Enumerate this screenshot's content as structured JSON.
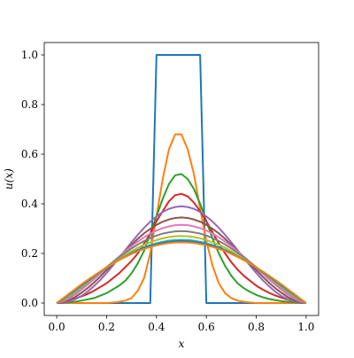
{
  "chart_data": {
    "type": "line",
    "xlabel": "x",
    "ylabel": "u(x)",
    "xlim": [
      -0.05,
      1.05
    ],
    "ylim": [
      -0.05,
      1.05
    ],
    "xticks": [
      {
        "value": 0,
        "label": "0.0"
      },
      {
        "value": 0.2,
        "label": "0.2"
      },
      {
        "value": 0.4,
        "label": "0.4"
      },
      {
        "value": 0.6,
        "label": "0.6"
      },
      {
        "value": 0.8,
        "label": "0.8"
      },
      {
        "value": 1,
        "label": "1.0"
      }
    ],
    "yticks": [
      {
        "value": 0,
        "label": "0.0"
      },
      {
        "value": 0.2,
        "label": "0.2"
      },
      {
        "value": 0.4,
        "label": "0.4"
      },
      {
        "value": 0.6,
        "label": "0.6"
      },
      {
        "value": 0.8,
        "label": "0.8"
      },
      {
        "value": 1,
        "label": "1.0"
      }
    ],
    "x": [
      0,
      0.025,
      0.05,
      0.075,
      0.1,
      0.125,
      0.15,
      0.175,
      0.2,
      0.225,
      0.25,
      0.275,
      0.3,
      0.325,
      0.35,
      0.375,
      0.4,
      0.425,
      0.45,
      0.475,
      0.5,
      0.525,
      0.55,
      0.575,
      0.6,
      0.625,
      0.65,
      0.675,
      0.7,
      0.725,
      0.75,
      0.775,
      0.8,
      0.825,
      0.85,
      0.875,
      0.9,
      0.925,
      0.95,
      0.975,
      1
    ],
    "series": [
      {
        "color": "#1f77b4",
        "values": [
          0,
          0,
          0,
          0,
          0,
          0,
          0,
          0,
          0,
          0,
          0,
          0,
          0,
          0,
          0,
          0,
          1,
          1,
          1,
          1,
          1,
          1,
          1,
          1,
          0,
          0,
          0,
          0,
          0,
          0,
          0,
          0,
          0,
          0,
          0,
          0,
          0,
          0,
          0,
          0,
          0
        ]
      },
      {
        "color": "#ff7f0e",
        "values": [
          0,
          0,
          0,
          0,
          0,
          0,
          0,
          0,
          0,
          0.002,
          0.005,
          0.01,
          0.02,
          0.05,
          0.1,
          0.2,
          0.35,
          0.5,
          0.62,
          0.68,
          0.68,
          0.62,
          0.52,
          0.38,
          0.25,
          0.15,
          0.08,
          0.04,
          0.02,
          0.01,
          0.005,
          0.002,
          0,
          0,
          0,
          0,
          0,
          0,
          0,
          0,
          0
        ]
      },
      {
        "color": "#2ca02c",
        "values": [
          0,
          0.001,
          0.003,
          0.006,
          0.01,
          0.015,
          0.02,
          0.03,
          0.04,
          0.055,
          0.07,
          0.09,
          0.12,
          0.16,
          0.21,
          0.28,
          0.35,
          0.42,
          0.48,
          0.515,
          0.52,
          0.5,
          0.46,
          0.4,
          0.33,
          0.26,
          0.2,
          0.15,
          0.11,
          0.08,
          0.06,
          0.045,
          0.033,
          0.024,
          0.017,
          0.012,
          0.008,
          0.005,
          0.003,
          0.001,
          0
        ]
      },
      {
        "color": "#d62728",
        "values": [
          0,
          0.004,
          0.01,
          0.018,
          0.027,
          0.037,
          0.05,
          0.065,
          0.08,
          0.1,
          0.12,
          0.145,
          0.17,
          0.2,
          0.24,
          0.28,
          0.33,
          0.37,
          0.41,
          0.435,
          0.44,
          0.43,
          0.405,
          0.37,
          0.33,
          0.285,
          0.24,
          0.2,
          0.165,
          0.135,
          0.11,
          0.09,
          0.07,
          0.055,
          0.042,
          0.031,
          0.022,
          0.014,
          0.008,
          0.003,
          0
        ]
      },
      {
        "color": "#9467bd",
        "values": [
          0,
          0.001,
          0.007,
          0.016,
          0.029,
          0.047,
          0.069,
          0.093,
          0.121,
          0.151,
          0.182,
          0.213,
          0.245,
          0.275,
          0.303,
          0.328,
          0.349,
          0.367,
          0.38,
          0.387,
          0.39,
          0.387,
          0.38,
          0.367,
          0.349,
          0.328,
          0.303,
          0.275,
          0.245,
          0.213,
          0.182,
          0.151,
          0.121,
          0.093,
          0.069,
          0.047,
          0.029,
          0.016,
          0.007,
          0.001,
          0
        ]
      },
      {
        "color": "#8c564b",
        "values": [
          0,
          0.003,
          0.012,
          0.025,
          0.042,
          0.061,
          0.083,
          0.107,
          0.133,
          0.158,
          0.185,
          0.211,
          0.235,
          0.259,
          0.281,
          0.299,
          0.315,
          0.328,
          0.337,
          0.343,
          0.345,
          0.343,
          0.337,
          0.328,
          0.315,
          0.299,
          0.281,
          0.259,
          0.235,
          0.211,
          0.185,
          0.158,
          0.133,
          0.107,
          0.083,
          0.061,
          0.042,
          0.025,
          0.012,
          0.003,
          0
        ]
      },
      {
        "color": "#e377c2",
        "values": [
          0,
          0.007,
          0.019,
          0.035,
          0.054,
          0.075,
          0.096,
          0.119,
          0.142,
          0.165,
          0.187,
          0.209,
          0.229,
          0.248,
          0.265,
          0.28,
          0.292,
          0.302,
          0.309,
          0.314,
          0.315,
          0.314,
          0.309,
          0.302,
          0.292,
          0.28,
          0.265,
          0.248,
          0.229,
          0.209,
          0.187,
          0.165,
          0.142,
          0.119,
          0.096,
          0.075,
          0.054,
          0.035,
          0.019,
          0.007,
          0
        ]
      },
      {
        "color": "#7f7f7f",
        "values": [
          0,
          0.011,
          0.026,
          0.044,
          0.063,
          0.083,
          0.104,
          0.125,
          0.145,
          0.165,
          0.185,
          0.203,
          0.22,
          0.236,
          0.25,
          0.262,
          0.272,
          0.28,
          0.285,
          0.289,
          0.29,
          0.289,
          0.285,
          0.28,
          0.272,
          0.262,
          0.25,
          0.236,
          0.22,
          0.203,
          0.185,
          0.165,
          0.145,
          0.125,
          0.104,
          0.083,
          0.063,
          0.044,
          0.026,
          0.011,
          0
        ]
      },
      {
        "color": "#bcbd22",
        "values": [
          0,
          0.013,
          0.029,
          0.047,
          0.066,
          0.085,
          0.105,
          0.124,
          0.143,
          0.161,
          0.178,
          0.194,
          0.209,
          0.223,
          0.235,
          0.245,
          0.254,
          0.261,
          0.266,
          0.269,
          0.27,
          0.269,
          0.266,
          0.261,
          0.254,
          0.245,
          0.235,
          0.223,
          0.209,
          0.194,
          0.178,
          0.161,
          0.143,
          0.124,
          0.105,
          0.085,
          0.066,
          0.047,
          0.029,
          0.013,
          0
        ]
      },
      {
        "color": "#17becf",
        "values": [
          0,
          0.015,
          0.033,
          0.051,
          0.07,
          0.089,
          0.107,
          0.125,
          0.142,
          0.159,
          0.174,
          0.189,
          0.202,
          0.214,
          0.225,
          0.234,
          0.241,
          0.247,
          0.252,
          0.254,
          0.255,
          0.254,
          0.252,
          0.247,
          0.241,
          0.234,
          0.225,
          0.214,
          0.202,
          0.189,
          0.174,
          0.159,
          0.142,
          0.125,
          0.107,
          0.089,
          0.07,
          0.051,
          0.033,
          0.015,
          0
        ]
      },
      {
        "color": "#1f77b4",
        "values": [
          0,
          0.017,
          0.036,
          0.054,
          0.073,
          0.091,
          0.109,
          0.126,
          0.143,
          0.159,
          0.174,
          0.187,
          0.2,
          0.212,
          0.222,
          0.23,
          0.237,
          0.243,
          0.247,
          0.249,
          0.25,
          0.249,
          0.247,
          0.243,
          0.237,
          0.23,
          0.222,
          0.212,
          0.2,
          0.187,
          0.174,
          0.159,
          0.143,
          0.126,
          0.109,
          0.091,
          0.073,
          0.054,
          0.036,
          0.017,
          0
        ]
      },
      {
        "color": "#ff7f0e",
        "values": [
          0,
          0.019,
          0.038,
          0.057,
          0.076,
          0.094,
          0.111,
          0.128,
          0.144,
          0.159,
          0.173,
          0.186,
          0.198,
          0.209,
          0.218,
          0.226,
          0.233,
          0.238,
          0.242,
          0.244,
          0.245,
          0.244,
          0.242,
          0.238,
          0.233,
          0.226,
          0.218,
          0.209,
          0.198,
          0.186,
          0.173,
          0.159,
          0.144,
          0.128,
          0.111,
          0.094,
          0.076,
          0.057,
          0.038,
          0.019,
          0
        ]
      }
    ]
  }
}
